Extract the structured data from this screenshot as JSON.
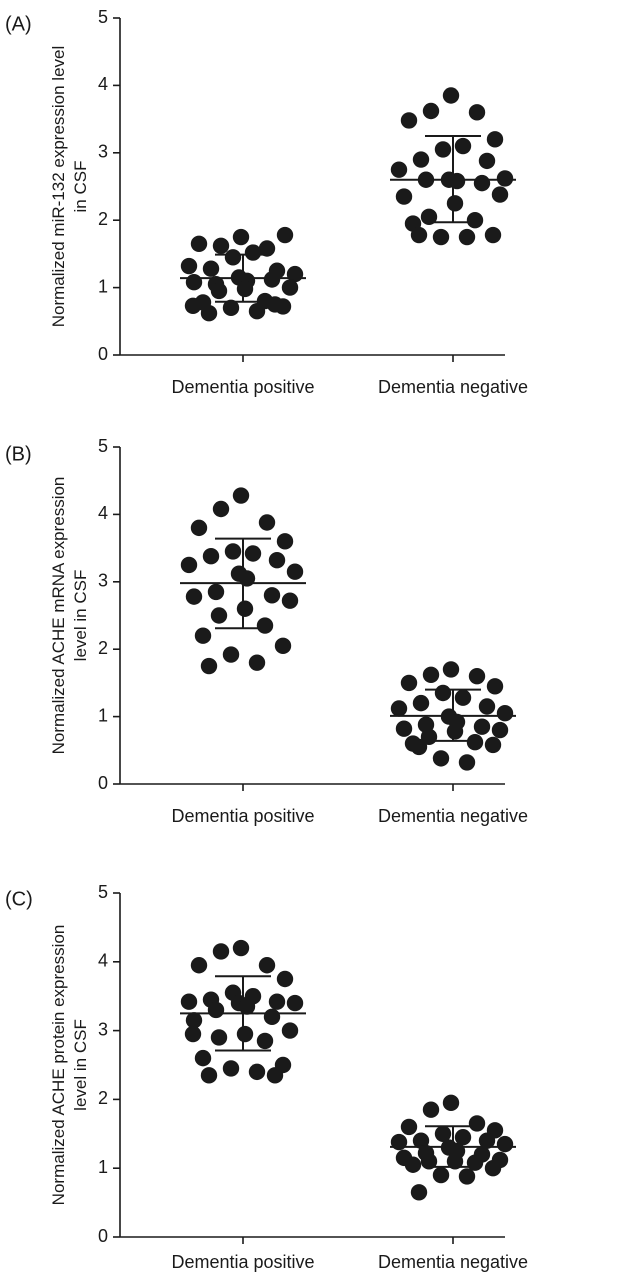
{
  "chart_data": [
    {
      "type": "scatter",
      "panel_label": "(A)",
      "ylabel_lines": [
        "Normalized miR-132 expression level",
        "in CSF"
      ],
      "categories": [
        "Dementia positive",
        "Dementia negative"
      ],
      "ylim": [
        0,
        5
      ],
      "yticks": [
        "0",
        "1",
        "2",
        "3",
        "4",
        "5"
      ],
      "groups": [
        {
          "category": "Dementia positive",
          "mean": 1.14,
          "sd_upper": 1.49,
          "sd_lower": 0.79,
          "points": [
            1.75,
            1.62,
            1.58,
            1.65,
            1.78,
            1.45,
            1.52,
            1.28,
            1.25,
            1.32,
            1.2,
            1.15,
            1.1,
            1.05,
            1.12,
            1.08,
            1.0,
            0.98,
            0.95,
            0.8,
            0.78,
            0.72,
            0.7,
            0.65,
            0.62,
            0.75,
            0.73
          ]
        },
        {
          "category": "Dementia negative",
          "mean": 2.6,
          "sd_upper": 3.25,
          "sd_lower": 1.97,
          "points": [
            3.85,
            3.62,
            3.6,
            3.48,
            3.2,
            3.05,
            3.1,
            2.9,
            2.88,
            2.75,
            2.62,
            2.6,
            2.58,
            2.6,
            2.55,
            2.35,
            2.38,
            2.25,
            2.05,
            2.0,
            1.95,
            1.78,
            1.75,
            1.75,
            1.78
          ]
        }
      ]
    },
    {
      "type": "scatter",
      "panel_label": "(B)",
      "ylabel_lines": [
        "Normalized ACHE mRNA expression",
        "level in CSF"
      ],
      "categories": [
        "Dementia positive",
        "Dementia negative"
      ],
      "ylim": [
        0,
        5
      ],
      "yticks": [
        "0",
        "1",
        "2",
        "3",
        "4",
        "5"
      ],
      "groups": [
        {
          "category": "Dementia positive",
          "mean": 2.98,
          "sd_upper": 3.64,
          "sd_lower": 2.31,
          "points": [
            4.28,
            4.08,
            3.88,
            3.8,
            3.6,
            3.45,
            3.42,
            3.38,
            3.32,
            3.25,
            3.15,
            3.12,
            3.05,
            2.85,
            2.8,
            2.78,
            2.72,
            2.6,
            2.5,
            2.35,
            2.2,
            2.05,
            1.92,
            1.8,
            1.75
          ]
        },
        {
          "category": "Dementia negative",
          "mean": 1.01,
          "sd_upper": 1.4,
          "sd_lower": 0.64,
          "points": [
            1.7,
            1.62,
            1.6,
            1.5,
            1.45,
            1.35,
            1.28,
            1.2,
            1.15,
            1.12,
            1.05,
            1.0,
            0.92,
            0.88,
            0.85,
            0.82,
            0.8,
            0.78,
            0.7,
            0.62,
            0.6,
            0.58,
            0.38,
            0.32,
            0.55
          ]
        }
      ]
    },
    {
      "type": "scatter",
      "panel_label": "(C)",
      "ylabel_lines": [
        "Normalized ACHE protein expression",
        "level in CSF"
      ],
      "categories": [
        "Dementia positive",
        "Dementia negative"
      ],
      "ylim": [
        0,
        5
      ],
      "yticks": [
        "0",
        "1",
        "2",
        "3",
        "4",
        "5"
      ],
      "groups": [
        {
          "category": "Dementia positive",
          "mean": 3.25,
          "sd_upper": 3.79,
          "sd_lower": 2.71,
          "points": [
            4.2,
            4.15,
            3.95,
            3.95,
            3.75,
            3.55,
            3.5,
            3.45,
            3.42,
            3.42,
            3.4,
            3.4,
            3.35,
            3.3,
            3.2,
            3.15,
            3.0,
            2.95,
            2.9,
            2.85,
            2.6,
            2.5,
            2.45,
            2.4,
            2.35,
            2.35,
            2.95
          ]
        },
        {
          "category": "Dementia negative",
          "mean": 1.31,
          "sd_upper": 1.61,
          "sd_lower": 1.02,
          "points": [
            1.95,
            1.85,
            1.65,
            1.6,
            1.55,
            1.5,
            1.45,
            1.4,
            1.4,
            1.38,
            1.35,
            1.3,
            1.25,
            1.22,
            1.2,
            1.15,
            1.12,
            1.1,
            1.1,
            1.08,
            1.05,
            1.0,
            0.9,
            0.88,
            0.65
          ]
        }
      ]
    }
  ]
}
